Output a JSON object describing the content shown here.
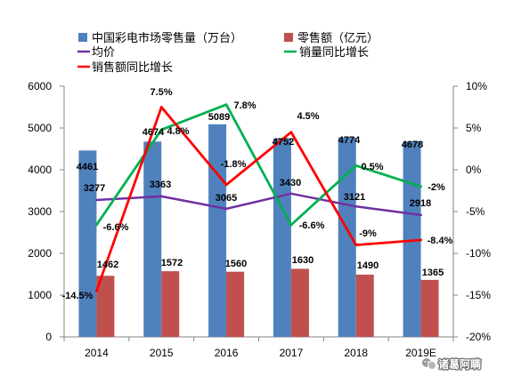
{
  "chart_data": {
    "type": "bar",
    "categories": [
      "2014",
      "2015",
      "2016",
      "2017",
      "2018",
      "2019E"
    ],
    "series": [
      {
        "name": "中国彩电市场零售量（万台）",
        "type": "bar",
        "y_axis": "left",
        "color": "#4F81BD",
        "values": [
          4461,
          4674,
          5089,
          4752,
          4774,
          4678
        ]
      },
      {
        "name": "零售额（亿元）",
        "type": "bar",
        "y_axis": "left",
        "color": "#C0504D",
        "values": [
          1462,
          1572,
          1560,
          1630,
          1490,
          1365
        ]
      },
      {
        "name": "均价",
        "type": "line",
        "y_axis": "left",
        "color": "#7030A0",
        "values": [
          3277,
          3363,
          3065,
          3430,
          3121,
          2918
        ]
      },
      {
        "name": "销量同比增长",
        "type": "line",
        "y_axis": "right",
        "color": "#00B050",
        "values": [
          -6.6,
          4.8,
          7.8,
          -6.6,
          0.5,
          -2
        ],
        "labels": [
          "-6.6%",
          "4.8%",
          "7.8%",
          "-6.6%",
          "0.5%",
          "-2%"
        ]
      },
      {
        "name": "销售额同比增长",
        "type": "line",
        "y_axis": "right",
        "color": "#FF0000",
        "values": [
          -14.5,
          7.5,
          -1.8,
          4.5,
          -9,
          -8.4
        ],
        "labels": [
          "-14.5%",
          "7.5%",
          "-1.8%",
          "4.5%",
          "-9%",
          "-8.4%"
        ]
      }
    ],
    "y_left": {
      "range": [
        0,
        6000
      ],
      "ticks": [
        0,
        1000,
        2000,
        3000,
        4000,
        5000,
        6000
      ]
    },
    "y_right": {
      "range": [
        -20,
        10
      ],
      "ticks": [
        "-20%",
        "-15%",
        "-10%",
        "-5%",
        "0%",
        "5%",
        "10%"
      ]
    },
    "grid": false,
    "legend": "top"
  },
  "watermark": "诸葛阿瞒"
}
